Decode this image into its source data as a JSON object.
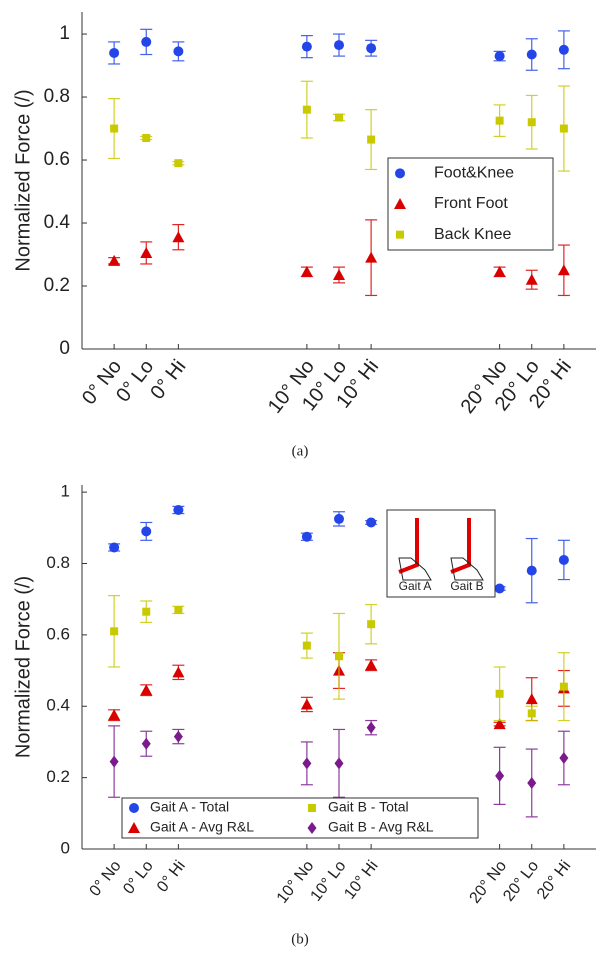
{
  "chart_data": [
    {
      "type": "scatter",
      "y_label": "Normalized Force (/)",
      "caption": "(a)",
      "x": [
        1,
        2,
        3,
        7,
        8,
        9,
        13,
        14,
        15
      ],
      "xlim": [
        0,
        16
      ],
      "xticks": [
        {
          "value": 1,
          "label": "0° No"
        },
        {
          "value": 2,
          "label": "0° Lo"
        },
        {
          "value": 3,
          "label": "0° Hi"
        },
        {
          "value": 7,
          "label": "10° No"
        },
        {
          "value": 8,
          "label": "10° Lo"
        },
        {
          "value": 9,
          "label": "10° Hi"
        },
        {
          "value": 13,
          "label": "20° No"
        },
        {
          "value": 14,
          "label": "20° Lo"
        },
        {
          "value": 15,
          "label": "20° Hi"
        }
      ],
      "ylim": [
        0,
        1.07
      ],
      "yticks": [
        0,
        0.2,
        0.4,
        0.6,
        0.8,
        1
      ],
      "legend": "center right",
      "series": [
        {
          "name": "Foot&Knee",
          "color": "#2446e8",
          "marker": "circle",
          "values": [
            0.94,
            0.975,
            0.945,
            0.96,
            0.965,
            0.955,
            0.93,
            0.935,
            0.95
          ],
          "errors": [
            0.035,
            0.04,
            0.03,
            0.035,
            0.035,
            0.025,
            0.015,
            0.05,
            0.06
          ]
        },
        {
          "name": "Front Foot",
          "color": "#d90000",
          "marker": "triangle",
          "values": [
            0.28,
            0.305,
            0.355,
            0.245,
            0.235,
            0.29,
            0.245,
            0.22,
            0.25
          ],
          "errors": [
            0.01,
            0.035,
            0.04,
            0.015,
            0.025,
            0.12,
            0.015,
            0.03,
            0.08
          ]
        },
        {
          "name": "Back Knee",
          "color": "#c9c900",
          "marker": "square",
          "values": [
            0.7,
            0.67,
            0.59,
            0.76,
            0.735,
            0.665,
            0.725,
            0.72,
            0.7
          ],
          "errors": [
            0.095,
            0.005,
            0.005,
            0.09,
            0.01,
            0.095,
            0.05,
            0.085,
            0.135
          ]
        }
      ]
    },
    {
      "type": "scatter",
      "y_label": "Normalized Force (/)",
      "caption": "(b)",
      "x": [
        1,
        2,
        3,
        7,
        8,
        9,
        13,
        14,
        15
      ],
      "xlim": [
        0,
        16
      ],
      "xticks": [
        {
          "value": 1,
          "label": "0° No"
        },
        {
          "value": 2,
          "label": "0° Lo"
        },
        {
          "value": 3,
          "label": "0° Hi"
        },
        {
          "value": 7,
          "label": "10° No"
        },
        {
          "value": 8,
          "label": "10° Lo"
        },
        {
          "value": 9,
          "label": "10° Hi"
        },
        {
          "value": 13,
          "label": "20° No"
        },
        {
          "value": 14,
          "label": "20° Lo"
        },
        {
          "value": 15,
          "label": "20° Hi"
        }
      ],
      "ylim": [
        0,
        1.02
      ],
      "yticks": [
        0,
        0.2,
        0.4,
        0.6,
        0.8,
        1
      ],
      "legend": "lower left",
      "inset_labels": [
        "Gait A",
        "Gait B"
      ],
      "series": [
        {
          "name": "Gait A - Total",
          "color": "#2446e8",
          "marker": "circle",
          "values": [
            0.845,
            0.89,
            0.95,
            0.875,
            0.925,
            0.915,
            0.73,
            0.78,
            0.81
          ],
          "errors": [
            0.01,
            0.025,
            0.01,
            0.01,
            0.02,
            0.005,
            0.005,
            0.09,
            0.055
          ]
        },
        {
          "name": "Gait A - Avg R&L",
          "color": "#d90000",
          "marker": "triangle",
          "values": [
            0.375,
            0.445,
            0.495,
            0.405,
            0.5,
            0.515,
            0.35,
            0.42,
            0.45
          ],
          "errors": [
            0.015,
            0.015,
            0.02,
            0.02,
            0.05,
            0.015,
            0.005,
            0.06,
            0.05
          ]
        },
        {
          "name": "Gait B - Total",
          "color": "#c9c900",
          "marker": "square",
          "values": [
            0.61,
            0.665,
            0.67,
            0.57,
            0.54,
            0.63,
            0.435,
            0.38,
            0.455
          ],
          "errors": [
            0.1,
            0.03,
            0.01,
            0.035,
            0.12,
            0.055,
            0.075,
            0.02,
            0.095
          ]
        },
        {
          "name": "Gait B - Avg R&L",
          "color": "#7a1a8c",
          "marker": "diamond",
          "values": [
            0.245,
            0.295,
            0.315,
            0.24,
            0.24,
            0.34,
            0.205,
            0.185,
            0.255
          ],
          "errors": [
            0.1,
            0.035,
            0.02,
            0.06,
            0.095,
            0.02,
            0.08,
            0.095,
            0.075
          ]
        }
      ]
    }
  ]
}
